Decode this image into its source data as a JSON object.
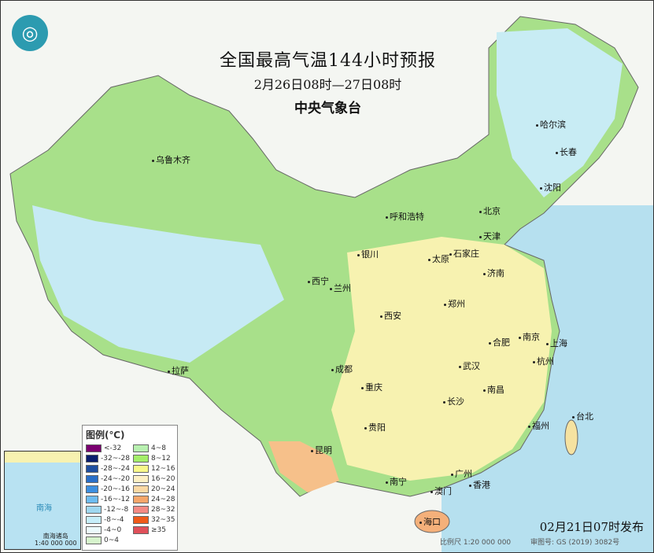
{
  "header": {
    "title": "全国最高气温144小时预报",
    "period": "2月26日08时—27日08时",
    "issuer": "中央气象台"
  },
  "logo": {
    "icon": "cma-logo-icon"
  },
  "cities": [
    "乌鲁木齐",
    "哈尔滨",
    "长春",
    "沈阳",
    "北京",
    "天津",
    "呼和浩特",
    "银川",
    "太原",
    "石家庄",
    "济南",
    "西宁",
    "兰州",
    "郑州",
    "西安",
    "合肥",
    "南京",
    "上海",
    "杭州",
    "武汉",
    "成都",
    "拉萨",
    "重庆",
    "南昌",
    "长沙",
    "贵阳",
    "福州",
    "台北",
    "昆明",
    "广州",
    "南宁",
    "香港",
    "澳门",
    "海口"
  ],
  "legend": {
    "title": "图例(℃)",
    "left": [
      {
        "label": "<-32",
        "color": "#7a0070"
      },
      {
        "label": "-32~-28",
        "color": "#0a1e6e"
      },
      {
        "label": "-28~-24",
        "color": "#1f4fa0"
      },
      {
        "label": "-24~-20",
        "color": "#2a6fc8"
      },
      {
        "label": "-20~-16",
        "color": "#3d8fe0"
      },
      {
        "label": "-16~-12",
        "color": "#6ebcf0"
      },
      {
        "label": "-12~-8",
        "color": "#9fd8f0"
      },
      {
        "label": "-8~-4",
        "color": "#c6eefa"
      },
      {
        "label": "-4~0",
        "color": "#ecfafc"
      },
      {
        "label": "0~4",
        "color": "#d6f3cc"
      }
    ],
    "right": [
      {
        "label": "4~8",
        "color": "#b8f0b0"
      },
      {
        "label": "8~12",
        "color": "#a4ee6a"
      },
      {
        "label": "12~16",
        "color": "#f8f88a"
      },
      {
        "label": "16~20",
        "color": "#fdf0c4"
      },
      {
        "label": "20~24",
        "color": "#fbd9a4"
      },
      {
        "label": "24~28",
        "color": "#f6a66a"
      },
      {
        "label": "28~32",
        "color": "#f48a84"
      },
      {
        "label": "32~35",
        "color": "#f05a1a"
      },
      {
        "label": "≥35",
        "color": "#e0505a"
      }
    ]
  },
  "inset": {
    "sea": "南海",
    "label": "南海诸岛",
    "scale": "1:40 000 000"
  },
  "publish": "02月21日07时发布",
  "footer": {
    "scale": "比例尺 1:20 000 000",
    "map_no": "审图号: GS (2019) 3082号"
  }
}
